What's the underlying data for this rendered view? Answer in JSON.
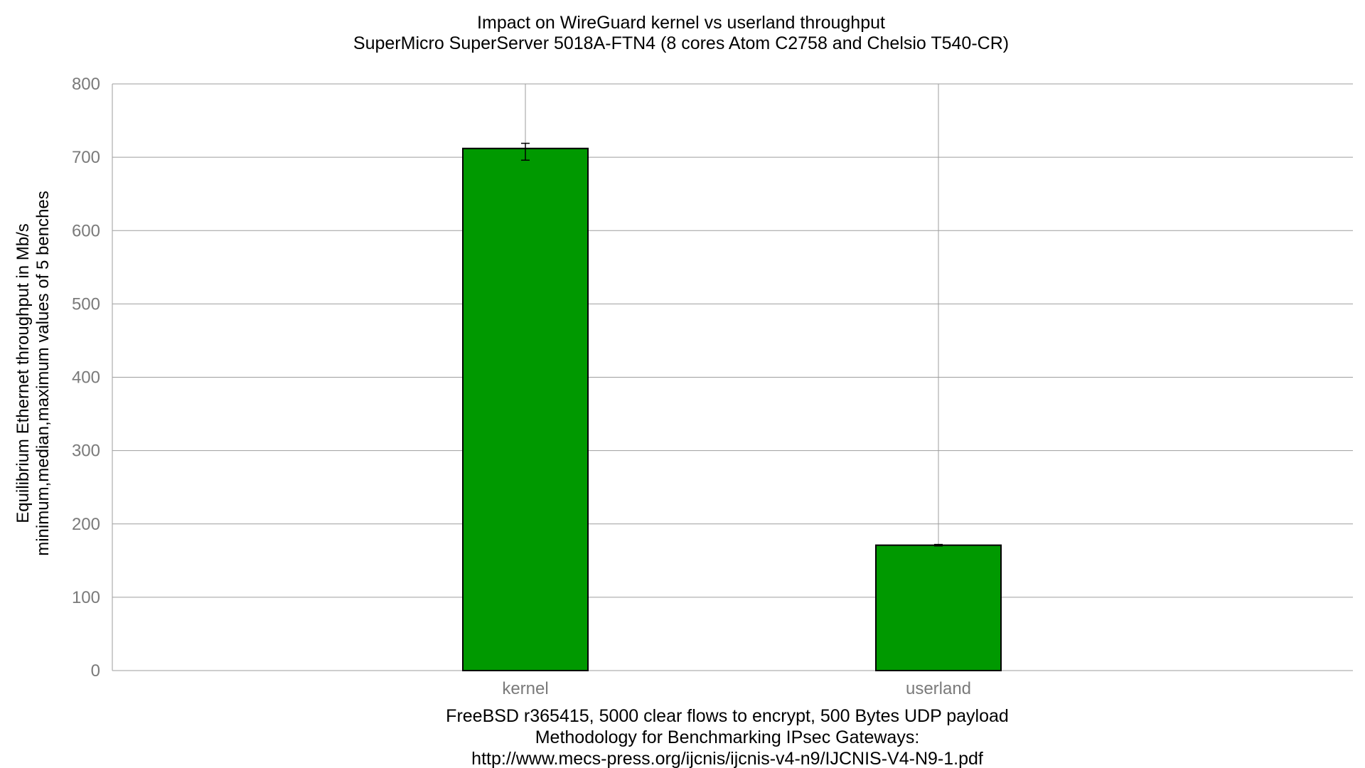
{
  "chart_data": {
    "type": "bar",
    "title": "Impact on WireGuard kernel vs userland throughput",
    "subtitle": "SuperMicro SuperServer 5018A-FTN4 (8 cores Atom C2758 and Chelsio T540-CR)",
    "ylabel": "Equilibrium Ethernet throughput in Mb/s",
    "ylabel2": "minimum,median,maximum values of 5 benches",
    "xlabel": "FreeBSD r365415, 5000 clear flows to encrypt, 500 Bytes UDP payload",
    "xlabel2": "Methodology for Benchmarking IPsec Gateways:",
    "xlabel3": "http://www.mecs-press.org/ijcnis/ijcnis-v4-n9/IJCNIS-V4-N9-1.pdf",
    "categories": [
      "kernel",
      "userland"
    ],
    "values": [
      712,
      171
    ],
    "min": [
      696,
      170
    ],
    "max": [
      719,
      172
    ],
    "ylim": [
      0,
      800
    ],
    "yticks": [
      0,
      100,
      200,
      300,
      400,
      500,
      600,
      700,
      800
    ],
    "grid": true,
    "bar_color": "#009900"
  }
}
